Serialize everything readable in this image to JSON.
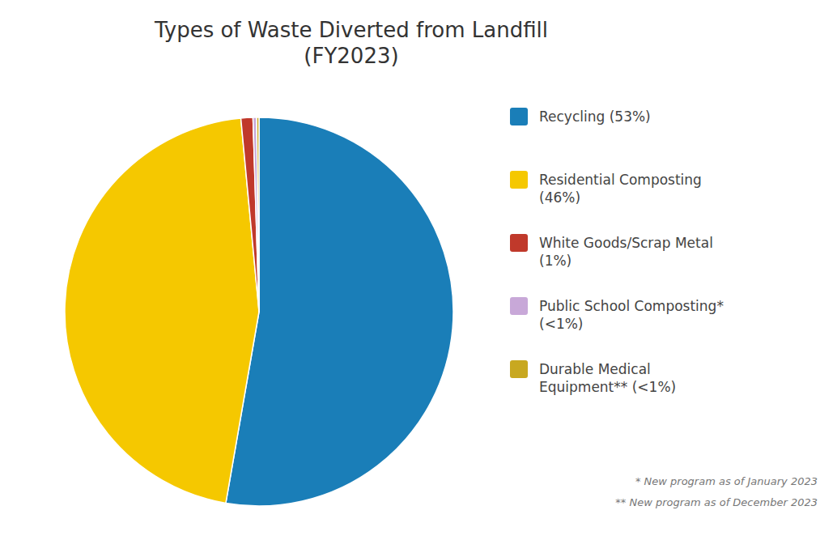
{
  "chart_data": {
    "type": "pie",
    "title": "Types of Waste Diverted from Landfill\n(FY2023)",
    "categories": [
      "Recycling (53%)",
      "Residential Composting\n(46%)",
      "White Goods/Scrap Metal\n(1%)",
      "Public School Composting*\n(<1%)",
      "Durable Medical\nEquipment** (<1%)"
    ],
    "values": [
      53,
      46,
      1,
      0.3,
      0.2
    ],
    "colors": [
      "#1a7eb8",
      "#f5c800",
      "#c0392b",
      "#c8a8d8",
      "#c8a820"
    ],
    "legend": "right",
    "annotations": [
      "* New program as of January 2023",
      "** New program as of December 2023"
    ]
  }
}
